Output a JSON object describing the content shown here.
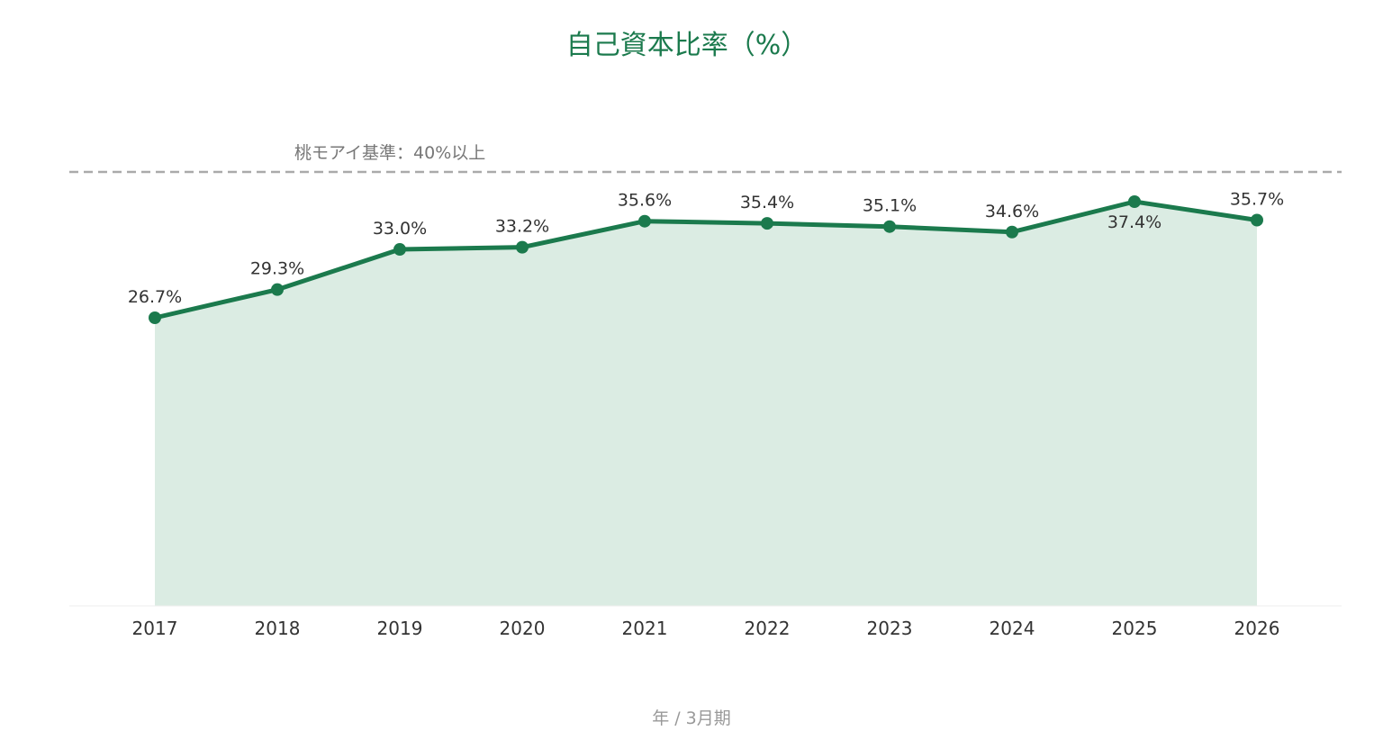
{
  "chart_data": {
    "type": "area",
    "title": "自己資本比率（%）",
    "xlabel": "年 / 3月期",
    "ylabel": "",
    "categories": [
      "2017",
      "2018",
      "2019",
      "2020",
      "2021",
      "2022",
      "2023",
      "2024",
      "2025",
      "2026"
    ],
    "values": [
      26.7,
      29.3,
      33.0,
      33.2,
      35.6,
      35.4,
      35.1,
      34.6,
      37.4,
      35.7
    ],
    "value_labels": [
      "26.7%",
      "29.3%",
      "33.0%",
      "33.2%",
      "35.6%",
      "35.4%",
      "35.1%",
      "34.6%",
      "37.4%",
      "35.7%"
    ],
    "label_positions": [
      "above",
      "above",
      "above",
      "above",
      "above",
      "above",
      "above",
      "above",
      "below",
      "above"
    ],
    "ylim": [
      0,
      40
    ],
    "grid": false,
    "legend": "none",
    "reference_line": {
      "value": 40,
      "label": "桃モアイ基準：40%以上",
      "style": "dashed"
    },
    "colors": {
      "line": "#1b7a4d",
      "fill": "#dbece3",
      "title": "#1b7a4d",
      "reference": "#aaaaaa"
    }
  }
}
